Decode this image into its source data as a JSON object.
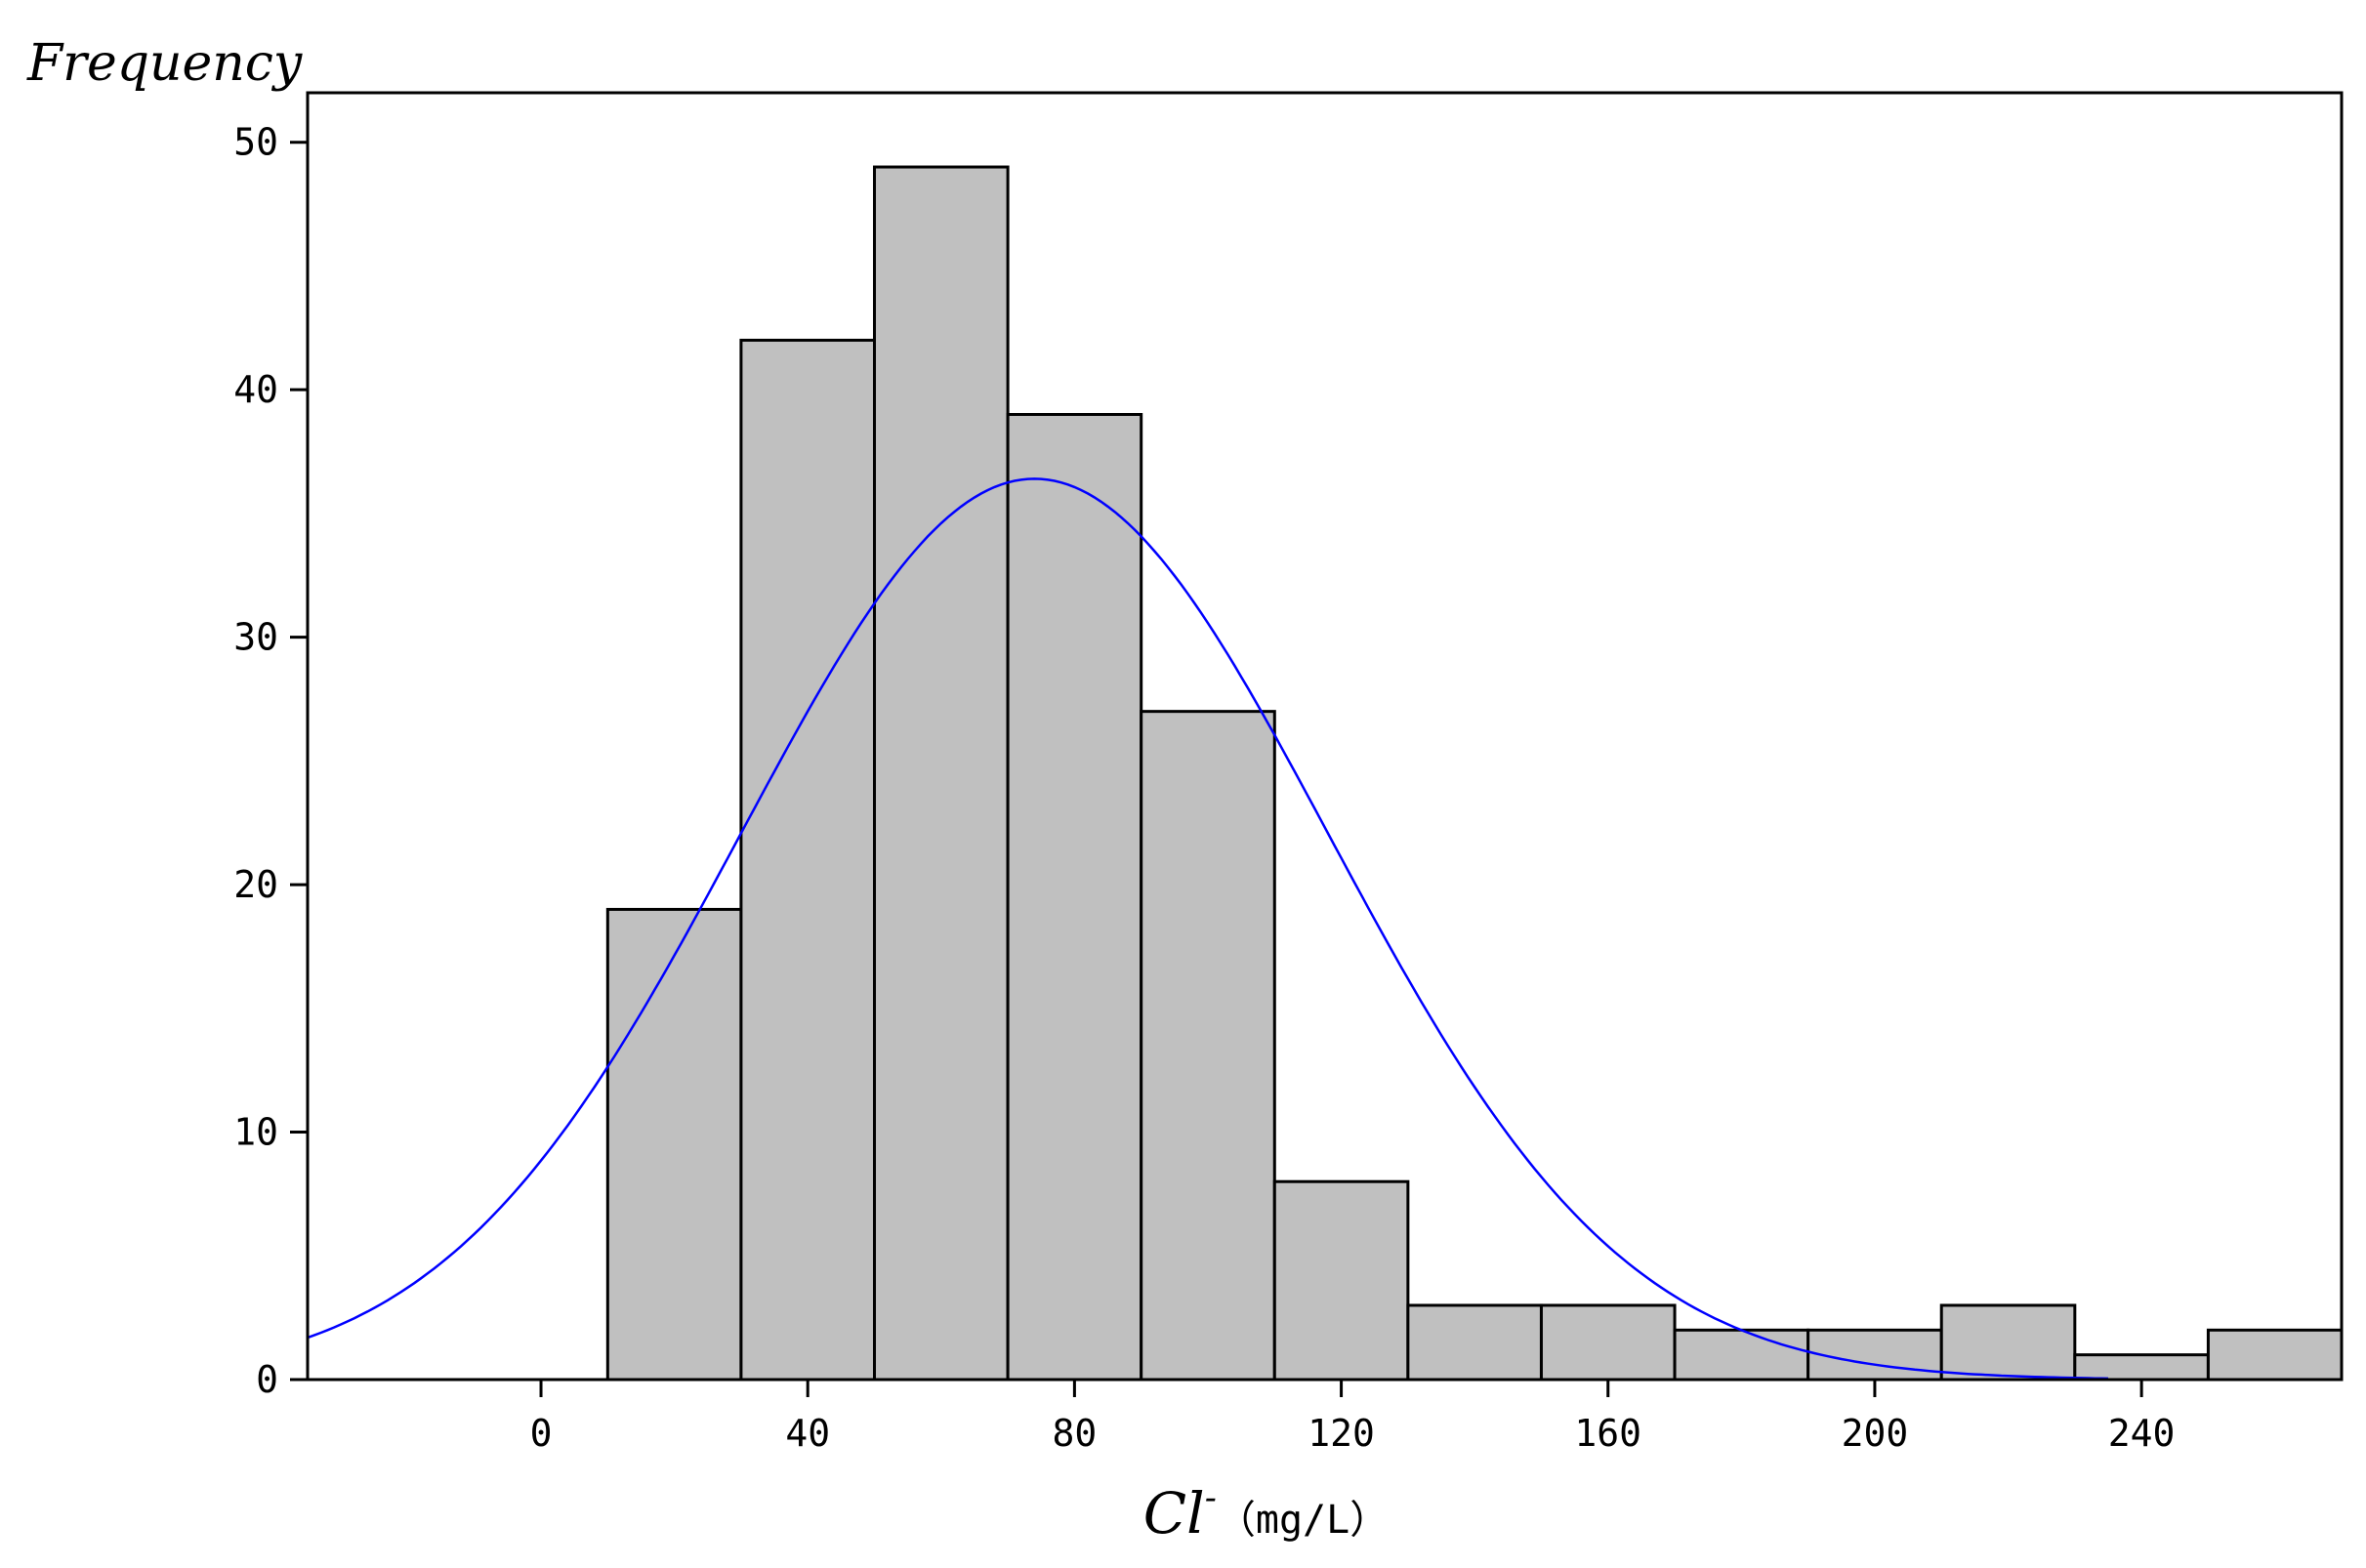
{
  "chart_data": {
    "type": "bar",
    "variant": "histogram",
    "ylabel": "Frequency",
    "xlabel": {
      "main": "Cl",
      "superscript": "-",
      "unit": "（mg/L）"
    },
    "xlim": [
      -35,
      270
    ],
    "ylim": [
      0,
      52
    ],
    "xticks": [
      0,
      40,
      80,
      120,
      160,
      200,
      240
    ],
    "yticks": [
      0,
      10,
      20,
      30,
      40,
      50
    ],
    "bins": [
      {
        "start": 10,
        "end": 30,
        "count": 19
      },
      {
        "start": 30,
        "end": 50,
        "count": 42
      },
      {
        "start": 50,
        "end": 70,
        "count": 49
      },
      {
        "start": 70,
        "end": 90,
        "count": 39
      },
      {
        "start": 90,
        "end": 110,
        "count": 27
      },
      {
        "start": 110,
        "end": 130,
        "count": 8
      },
      {
        "start": 130,
        "end": 150,
        "count": 3
      },
      {
        "start": 150,
        "end": 170,
        "count": 3
      },
      {
        "start": 170,
        "end": 190,
        "count": 2
      },
      {
        "start": 190,
        "end": 210,
        "count": 2
      },
      {
        "start": 210,
        "end": 230,
        "count": 3
      },
      {
        "start": 230,
        "end": 250,
        "count": 1
      },
      {
        "start": 250,
        "end": 270,
        "count": 2
      }
    ],
    "normal_curve": {
      "mean": 74,
      "std": 44,
      "peak": 36.4,
      "x_range": [
        -35,
        235
      ]
    },
    "grid": false,
    "legend": "none",
    "colors": {
      "bar_fill": "#c0c0c0",
      "bar_stroke": "#000000",
      "curve": "#0000ff",
      "axis": "#000000"
    }
  }
}
